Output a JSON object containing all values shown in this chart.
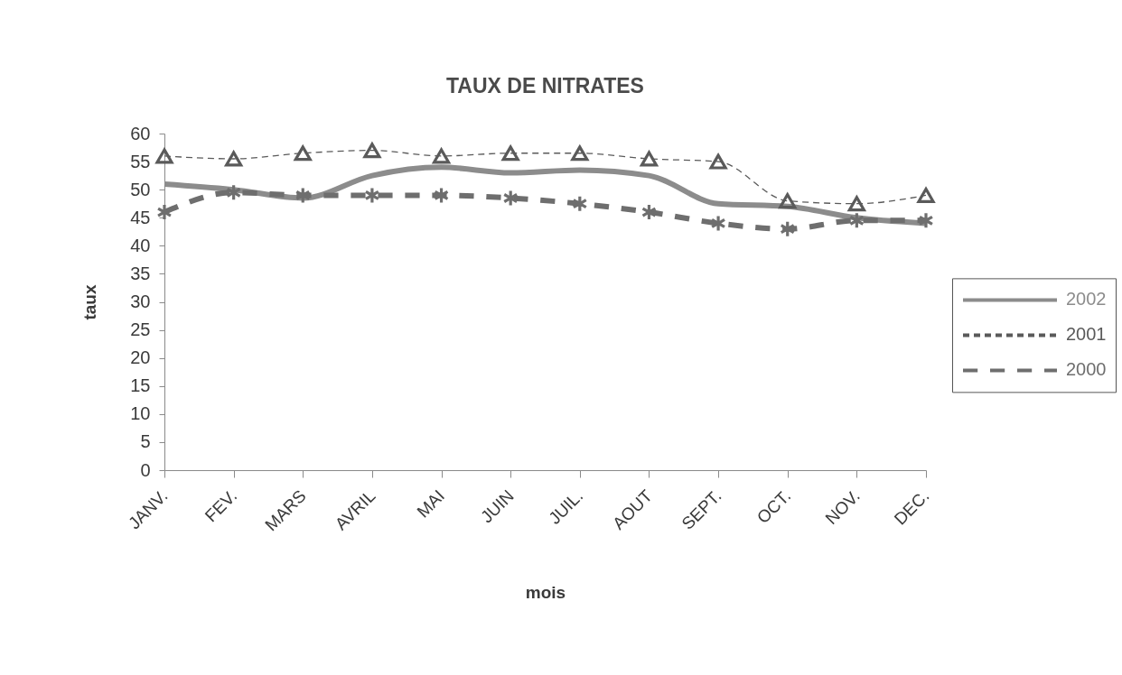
{
  "chart_data": {
    "type": "line",
    "title": "TAUX DE NITRATES",
    "xlabel": "mois",
    "ylabel": "taux",
    "categories": [
      "JANV.",
      "FEV.",
      "MARS",
      "AVRIL",
      "MAI",
      "JUIN",
      "JUIL.",
      "AOUT",
      "SEPT.",
      "OCT.",
      "NOV.",
      "DEC."
    ],
    "series": [
      {
        "name": "2002",
        "color": "#8c8c8c",
        "marker": "none",
        "line_style": "solid",
        "values": [
          51,
          50,
          48.5,
          52.5,
          54,
          53,
          53.5,
          52.5,
          47.5,
          47,
          45,
          44
        ]
      },
      {
        "name": "2001",
        "color": "#5a5a5a",
        "marker": "triangle",
        "line_style": "dashed",
        "values": [
          56,
          55.5,
          56.5,
          57,
          56,
          56.5,
          56.5,
          55.5,
          55,
          48,
          47.5,
          49
        ]
      },
      {
        "name": "2000",
        "color": "#6e6e6e",
        "marker": "star",
        "line_style": "dashed",
        "values": [
          46,
          49.5,
          49,
          49,
          49,
          48.5,
          47.5,
          46,
          44,
          43,
          44.5,
          44.5
        ]
      }
    ],
    "ylim": [
      0,
      60
    ],
    "yticks": [
      0,
      5,
      10,
      15,
      20,
      25,
      30,
      35,
      40,
      45,
      50,
      55,
      60
    ],
    "grid": false,
    "legend": "right"
  }
}
